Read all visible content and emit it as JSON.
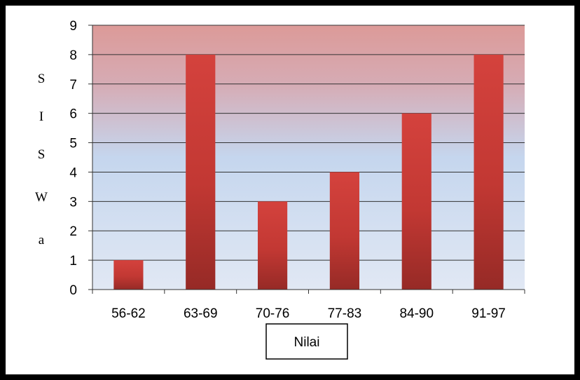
{
  "chart_data": {
    "type": "bar",
    "title": "",
    "xlabel": "Nilai",
    "ylabel": "SISWa",
    "ylabel_letters": [
      "S",
      "I",
      "S",
      "W",
      "a"
    ],
    "categories": [
      "56-62",
      "63-69",
      "70-76",
      "77-83",
      "84-90",
      "91-97"
    ],
    "values": [
      1,
      8,
      3,
      4,
      6,
      8
    ],
    "ylim": [
      0,
      9
    ],
    "yticks": [
      "0",
      "1",
      "2",
      "3",
      "4",
      "5",
      "6",
      "7",
      "8",
      "9"
    ],
    "grid": true,
    "legend": "none",
    "colors": {
      "bar_light": "#d4423d",
      "bar_dark": "#962a26",
      "background_top": "#dc9a98",
      "background_mid": "#c5d6ee",
      "background_bottom": "#e1e8f4",
      "grid": "#333333",
      "frame": "#000000"
    }
  }
}
